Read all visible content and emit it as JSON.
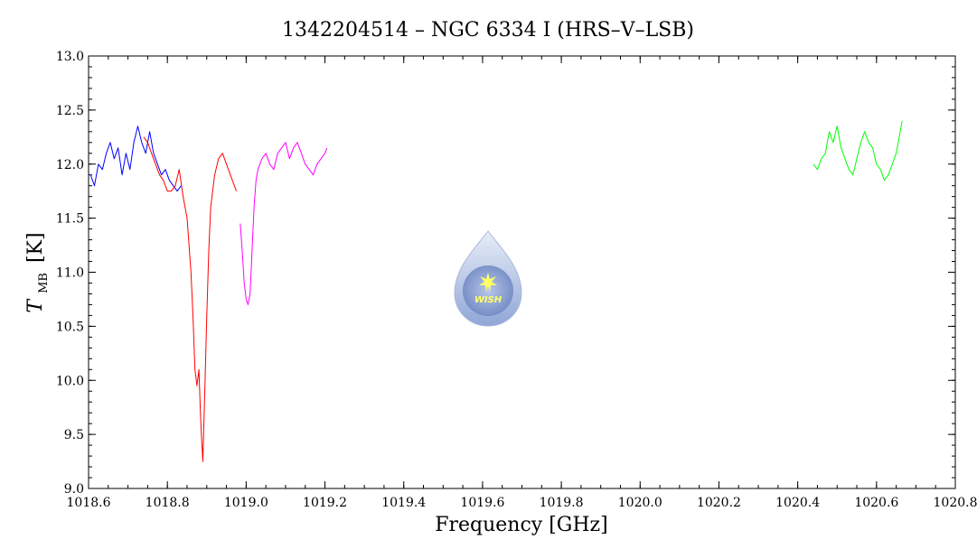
{
  "chart_data": {
    "type": "line",
    "title": "1342204514 – NGC 6334 I (HRS–V–LSB)",
    "xlabel": "Frequency [GHz]",
    "ylabel_main": "T",
    "ylabel_sub": "MB",
    "ylabel_unit": "[K]",
    "xlim": [
      1018.6,
      1020.8
    ],
    "ylim": [
      9.0,
      13.0
    ],
    "x_ticks": [
      1018.6,
      1018.8,
      1019.0,
      1019.2,
      1019.4,
      1019.6,
      1019.8,
      1020.0,
      1020.2,
      1020.4,
      1020.6,
      1020.8
    ],
    "x_tick_labels": [
      "1018.6",
      "1018.8",
      "1019.0",
      "1019.2",
      "1019.4",
      "1019.6",
      "1019.8",
      "1020.0",
      "1020.2",
      "1020.4",
      "1020.6",
      "1020.8"
    ],
    "y_ticks": [
      9.0,
      9.5,
      10.0,
      10.5,
      11.0,
      11.5,
      12.0,
      12.5,
      13.0
    ],
    "y_tick_labels": [
      "9.0",
      "9.5",
      "10.0",
      "10.5",
      "11.0",
      "11.5",
      "12.0",
      "12.5",
      "13.0"
    ],
    "grid": false,
    "series": [
      {
        "color": "#0000ff",
        "x": [
          1018.605,
          1018.615,
          1018.625,
          1018.635,
          1018.645,
          1018.655,
          1018.665,
          1018.675,
          1018.685,
          1018.695,
          1018.705,
          1018.715,
          1018.725,
          1018.735,
          1018.745,
          1018.755,
          1018.765,
          1018.775,
          1018.785,
          1018.795,
          1018.805,
          1018.815,
          1018.825,
          1018.835
        ],
        "y": [
          11.9,
          11.8,
          12.0,
          11.95,
          12.1,
          12.2,
          12.05,
          12.15,
          11.9,
          12.1,
          11.95,
          12.2,
          12.35,
          12.2,
          12.1,
          12.3,
          12.1,
          12.0,
          11.9,
          11.95,
          11.85,
          11.8,
          11.75,
          11.8
        ]
      },
      {
        "color": "#ff0000",
        "x": [
          1018.74,
          1018.75,
          1018.76,
          1018.77,
          1018.78,
          1018.79,
          1018.8,
          1018.81,
          1018.82,
          1018.83,
          1018.84,
          1018.85,
          1018.86,
          1018.865,
          1018.87,
          1018.875,
          1018.88,
          1018.885,
          1018.89,
          1018.895,
          1018.9,
          1018.905,
          1018.91,
          1018.92,
          1018.93,
          1018.94,
          1018.95,
          1018.96,
          1018.97,
          1018.975
        ],
        "y": [
          12.25,
          12.2,
          12.1,
          12.0,
          11.9,
          11.85,
          11.75,
          11.75,
          11.8,
          11.95,
          11.7,
          11.5,
          11.0,
          10.6,
          10.1,
          9.95,
          10.1,
          9.6,
          9.25,
          9.9,
          10.6,
          11.2,
          11.6,
          11.9,
          12.05,
          12.1,
          12.0,
          11.9,
          11.8,
          11.75
        ]
      },
      {
        "color": "#ff00ff",
        "x": [
          1018.985,
          1018.99,
          1018.995,
          1019.0,
          1019.005,
          1019.01,
          1019.015,
          1019.02,
          1019.025,
          1019.03,
          1019.04,
          1019.05,
          1019.06,
          1019.07,
          1019.08,
          1019.09,
          1019.1,
          1019.11,
          1019.12,
          1019.13,
          1019.14,
          1019.15,
          1019.16,
          1019.17,
          1019.18,
          1019.19,
          1019.2,
          1019.205
        ],
        "y": [
          11.45,
          11.2,
          10.9,
          10.75,
          10.7,
          10.8,
          11.2,
          11.6,
          11.85,
          11.95,
          12.05,
          12.1,
          12.0,
          11.95,
          12.1,
          12.15,
          12.2,
          12.05,
          12.15,
          12.2,
          12.1,
          12.0,
          11.95,
          11.9,
          12.0,
          12.05,
          12.1,
          12.15
        ]
      },
      {
        "color": "#00ff00",
        "x": [
          1020.44,
          1020.45,
          1020.46,
          1020.47,
          1020.48,
          1020.49,
          1020.5,
          1020.51,
          1020.52,
          1020.53,
          1020.54,
          1020.55,
          1020.56,
          1020.57,
          1020.58,
          1020.59,
          1020.6,
          1020.61,
          1020.62,
          1020.63,
          1020.64,
          1020.65,
          1020.66,
          1020.665
        ],
        "y": [
          12.0,
          11.95,
          12.05,
          12.1,
          12.3,
          12.2,
          12.35,
          12.15,
          12.05,
          11.95,
          11.9,
          12.05,
          12.2,
          12.3,
          12.2,
          12.15,
          12.0,
          11.95,
          11.85,
          11.9,
          12.0,
          12.1,
          12.3,
          12.4
        ]
      }
    ]
  },
  "logo": {
    "text": "WISH",
    "fill_top": "#e8eef8",
    "fill_bottom": "#8fa6d6",
    "star_color": "#ffff66"
  }
}
